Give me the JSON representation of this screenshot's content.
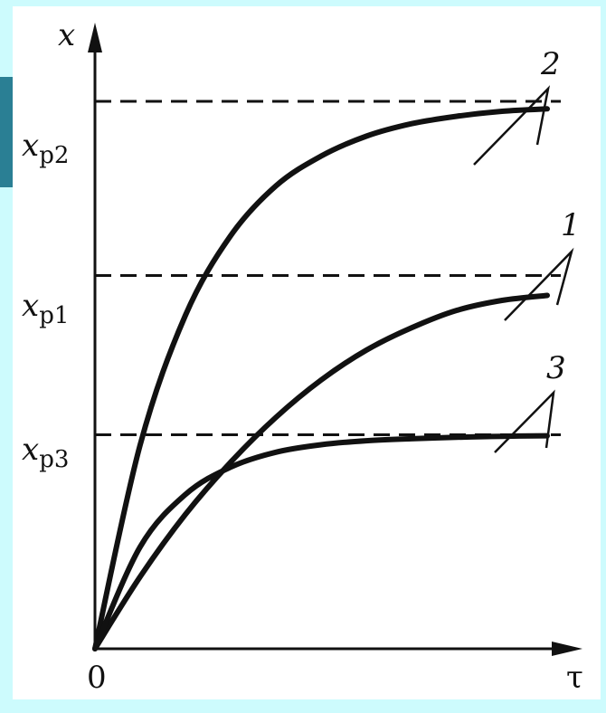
{
  "chart_data": {
    "type": "line",
    "title": "",
    "xlabel": "τ",
    "ylabel": "x",
    "origin_label": "0",
    "xlim": [
      0,
      10
    ],
    "ylim": [
      0,
      12
    ],
    "grid": false,
    "asymptotes": [
      {
        "label_main": "x",
        "label_sub": "p2",
        "value": 11
      },
      {
        "label_main": "x",
        "label_sub": "p1",
        "value": 7.5
      },
      {
        "label_main": "x",
        "label_sub": "p3",
        "value": 4.3
      }
    ],
    "series": [
      {
        "name": "2",
        "asymptote": 11,
        "x": [
          0,
          1,
          2,
          3,
          4,
          5,
          6,
          7,
          8,
          9,
          10
        ],
        "y": [
          0,
          4.1,
          6.7,
          8.3,
          9.3,
          9.9,
          10.3,
          10.55,
          10.7,
          10.8,
          10.85
        ]
      },
      {
        "name": "1",
        "asymptote": 7.5,
        "x": [
          0,
          1,
          2,
          3,
          4,
          5,
          6,
          7,
          8,
          9,
          10
        ],
        "y": [
          0,
          1.45,
          2.7,
          3.75,
          4.65,
          5.4,
          6.0,
          6.45,
          6.8,
          7.0,
          7.1
        ]
      },
      {
        "name": "3",
        "asymptote": 4.3,
        "x": [
          0,
          1,
          2,
          3,
          4,
          5,
          6,
          7,
          8,
          9,
          10
        ],
        "y": [
          0,
          2.05,
          3.1,
          3.65,
          3.95,
          4.1,
          4.18,
          4.22,
          4.25,
          4.27,
          4.28
        ]
      }
    ]
  }
}
